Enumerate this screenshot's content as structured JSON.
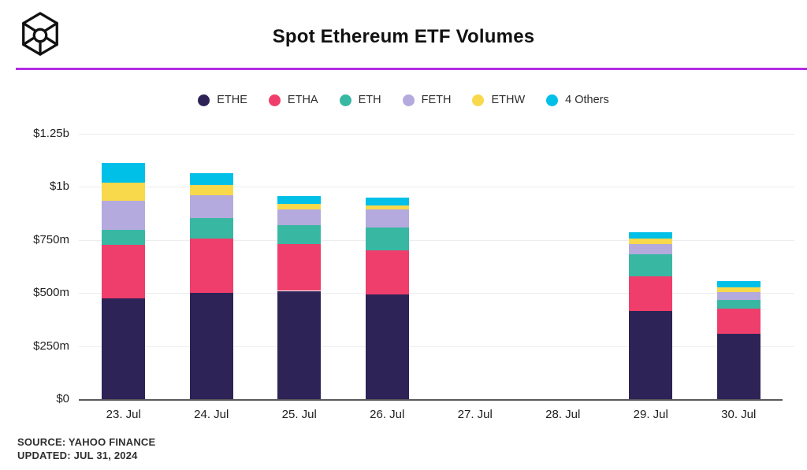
{
  "header": {
    "title": "Spot Ethereum ETF Volumes",
    "logo_icon": "the-block-cube-logo",
    "accent_color": "#b32ce4"
  },
  "chart_data": {
    "type": "bar",
    "stacked": true,
    "title": "Spot Ethereum ETF Volumes",
    "unit": "USD millions",
    "categories": [
      "23. Jul",
      "24. Jul",
      "25. Jul",
      "26. Jul",
      "27. Jul",
      "28. Jul",
      "29. Jul",
      "30. Jul"
    ],
    "series": [
      {
        "name": "ETHE",
        "color": "#2e2356",
        "values": [
          475,
          500,
          510,
          495,
          0,
          0,
          415,
          308
        ]
      },
      {
        "name": "ETHA",
        "color": "#ef3e6b",
        "values": [
          252,
          257,
          220,
          206,
          0,
          0,
          165,
          118
        ]
      },
      {
        "name": "ETH",
        "color": "#38b8a3",
        "values": [
          70,
          96,
          88,
          107,
          0,
          0,
          103,
          40
        ]
      },
      {
        "name": "FETH",
        "color": "#b4aadd",
        "values": [
          136,
          107,
          77,
          85,
          0,
          0,
          48,
          37
        ]
      },
      {
        "name": "ETHW",
        "color": "#f8d94b",
        "values": [
          88,
          48,
          26,
          18,
          0,
          0,
          26,
          22
        ]
      },
      {
        "name": "4 Others",
        "color": "#00c0e8",
        "values": [
          92,
          55,
          37,
          37,
          0,
          0,
          29,
          33
        ]
      }
    ],
    "totals_m": [
      1113,
      1063,
      958,
      948,
      0,
      0,
      786,
      558
    ],
    "ylim_m": [
      0,
      1250
    ],
    "yticks": [
      {
        "label": "$0",
        "value": 0
      },
      {
        "label": "$250m",
        "value": 250
      },
      {
        "label": "$500m",
        "value": 500
      },
      {
        "label": "$750m",
        "value": 750
      },
      {
        "label": "$1b",
        "value": 1000
      },
      {
        "label": "$1.25b",
        "value": 1250
      }
    ],
    "grid": "horizontal",
    "legend_position": "top"
  },
  "footer": {
    "source": "SOURCE: YAHOO FINANCE",
    "updated": "UPDATED: JUL 31, 2024"
  }
}
